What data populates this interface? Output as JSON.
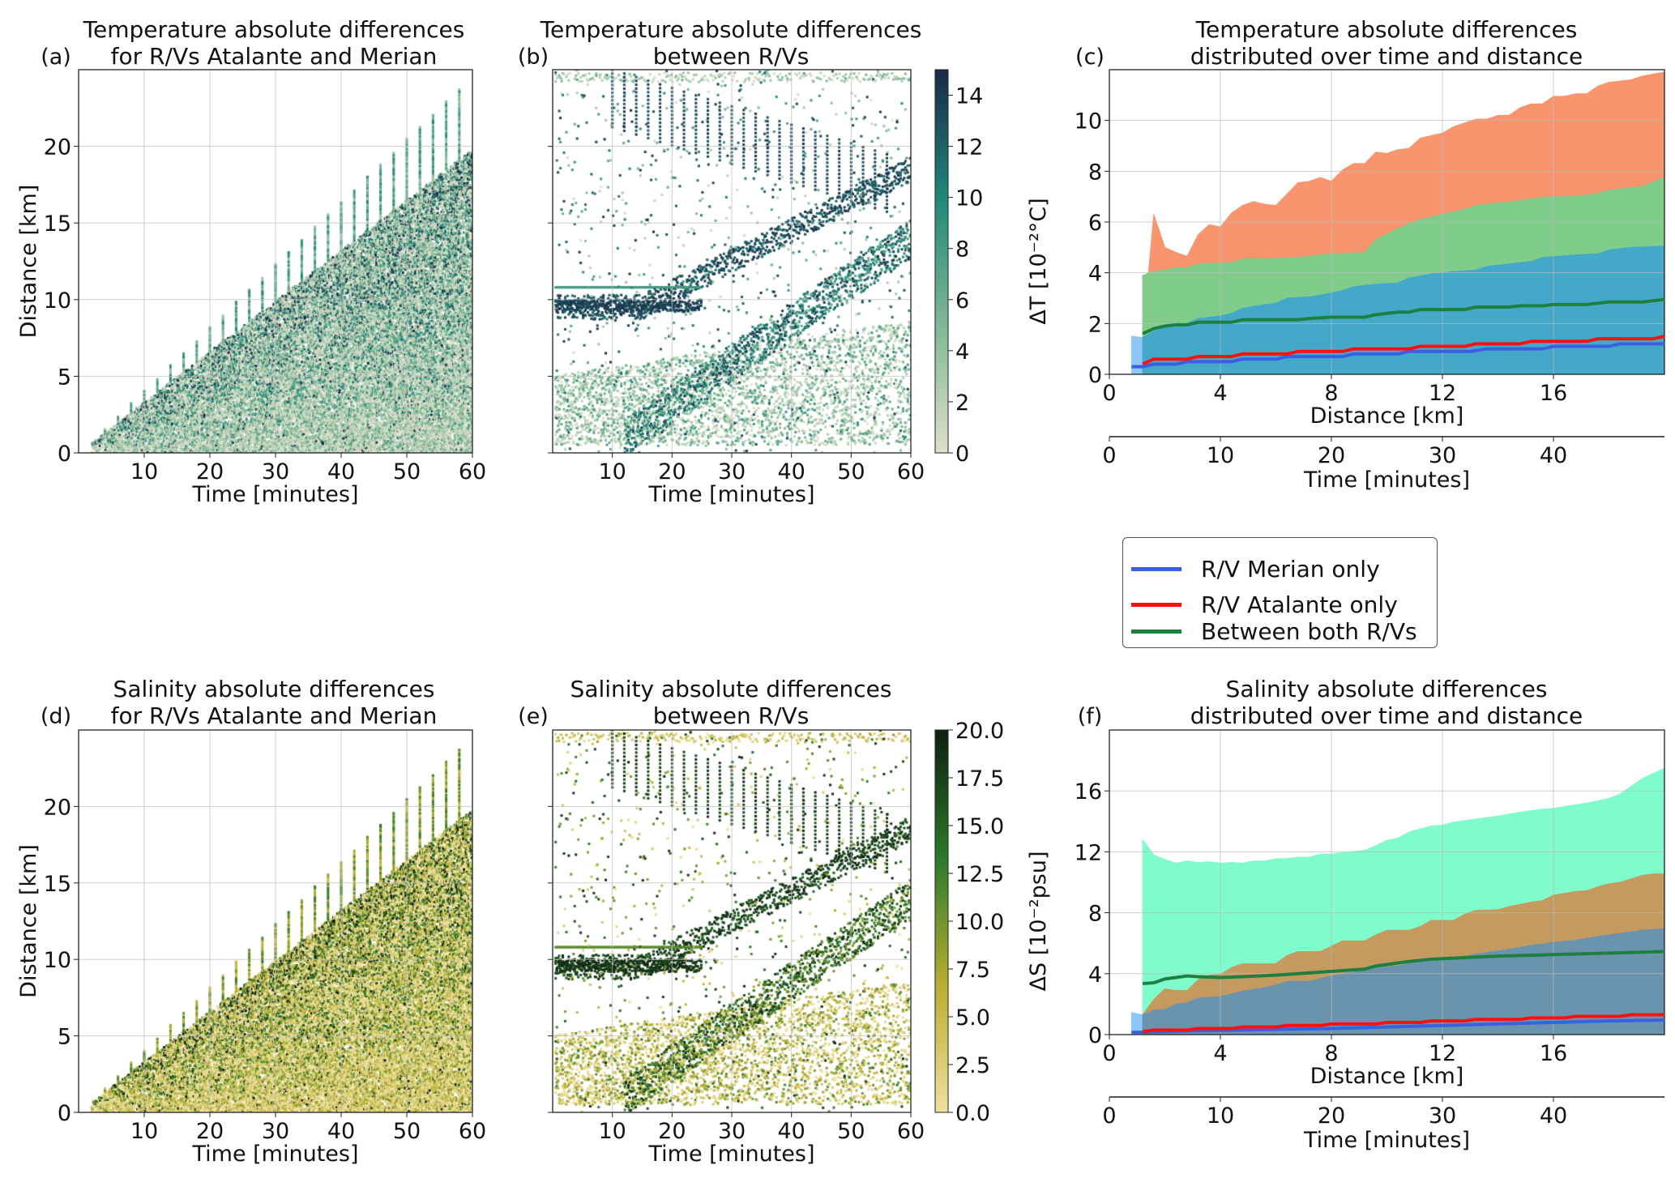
{
  "legend": {
    "entries": [
      {
        "label": "R/V Merian only",
        "color": "#3a5fe0"
      },
      {
        "label": "R/V Atalante only",
        "color": "#ff1010"
      },
      {
        "label": "Between both R/Vs",
        "color": "#1e8040"
      }
    ]
  },
  "chart_data": [
    {
      "panel_label": "(a)",
      "type": "scatter",
      "title": [
        "Temperature absolute differences",
        "for R/Vs Atalante and Merian"
      ],
      "xlabel": "Time [minutes]",
      "ylabel": "Distance [km]",
      "xlim": [
        0,
        60
      ],
      "ylim": [
        0,
        25
      ],
      "xticks": [
        10,
        20,
        30,
        40,
        50,
        60
      ],
      "yticks": [
        0,
        5,
        10,
        15,
        20
      ],
      "grid": true,
      "colormap": [
        "#dedfca",
        "#7fb896",
        "#1f8878",
        "#1a2a48"
      ],
      "value_range": [
        0,
        15
      ]
    },
    {
      "panel_label": "(b)",
      "type": "scatter",
      "title": [
        "Temperature absolute differences",
        "between R/Vs"
      ],
      "xlabel": "Time [minutes]",
      "xlim": [
        0,
        60
      ],
      "ylim": [
        0,
        25
      ],
      "xticks": [
        10,
        20,
        30,
        40,
        50,
        60
      ],
      "yticks": [
        0,
        5,
        10,
        15,
        20
      ],
      "grid": true,
      "colormap": [
        "#dedfca",
        "#7fb896",
        "#1f8878",
        "#1a2a48"
      ],
      "colorbar": {
        "label": "ΔT [10⁻²°C]",
        "range": [
          0,
          15
        ],
        "ticks": [
          "0",
          "2",
          "4",
          "6",
          "8",
          "10",
          "12",
          "14"
        ]
      }
    },
    {
      "panel_label": "(c)",
      "type": "area",
      "title": [
        "Temperature absolute differences",
        "distributed over time and distance"
      ],
      "xlabel": "Distance [km]",
      "xlim": [
        0,
        20
      ],
      "xticks": [
        0,
        4,
        8,
        12,
        16
      ],
      "secondary_x": {
        "xlabel": "Time [minutes]",
        "xlim": [
          0,
          50
        ],
        "xticks": [
          0,
          10,
          20,
          30,
          40
        ]
      },
      "ylim": [
        0,
        12
      ],
      "yticks": [
        0,
        2,
        4,
        6,
        8,
        10
      ],
      "grid": true,
      "bands": [
        {
          "color": "#f9956e",
          "x": [
            1.4,
            1.6,
            2,
            2.4,
            2.8,
            3.2,
            3.6,
            4,
            4.4,
            4.8,
            5.2,
            5.6,
            6,
            6.4,
            6.8,
            7.2,
            7.6,
            8,
            8.4,
            8.8,
            9.2,
            9.6,
            10,
            10.4,
            10.8,
            11.2,
            12,
            12.4,
            13.2,
            13.6,
            14,
            14.4,
            14.8,
            15.2,
            15.6,
            16,
            16.4,
            16.8,
            17.2,
            17.6,
            18,
            18.4,
            18.8,
            19.2,
            20
          ],
          "y": [
            3.9,
            6.3,
            5.0,
            4.8,
            4.65,
            5.5,
            5.9,
            5.8,
            6.35,
            6.65,
            6.8,
            6.7,
            6.65,
            7.1,
            7.55,
            7.6,
            7.75,
            7.6,
            8.05,
            8.3,
            8.3,
            8.75,
            8.7,
            8.85,
            8.9,
            9.3,
            9.5,
            9.75,
            10.05,
            10.05,
            10.2,
            10.2,
            10.5,
            10.65,
            10.65,
            10.95,
            10.95,
            11.05,
            11.05,
            11.35,
            11.5,
            11.55,
            11.6,
            11.75,
            11.9
          ]
        },
        {
          "color": "#80cc8a",
          "x": [
            1.2,
            1.6,
            2,
            2.4,
            2.8,
            3.2,
            4.4,
            4.8,
            5.6,
            6.8,
            8,
            9.2,
            9.6,
            10.4,
            11.2,
            12,
            12.8,
            13.2,
            14,
            14.8,
            15.6,
            16.8,
            17.6,
            18,
            19.2,
            20
          ],
          "y": [
            3.9,
            4.05,
            4.1,
            4.2,
            4.2,
            4.35,
            4.4,
            4.55,
            4.55,
            4.6,
            4.75,
            4.8,
            5.3,
            5.75,
            6.1,
            6.3,
            6.5,
            6.65,
            6.75,
            6.85,
            6.97,
            7.02,
            7.12,
            7.25,
            7.4,
            7.75
          ]
        },
        {
          "color": "#8ec8f6",
          "x": [
            0.8,
            1.2
          ],
          "y": [
            1.5,
            1.45
          ]
        },
        {
          "color": "#44a8c8",
          "x": [
            1.2,
            1.6,
            2,
            2.8,
            3.2,
            4,
            4.4,
            4.8,
            5.6,
            6,
            6.4,
            7.2,
            8,
            8.4,
            8.8,
            9.6,
            10.4,
            10.8,
            11.6,
            12.4,
            13.2,
            13.6,
            14.4,
            15.2,
            15.6,
            16.8,
            17.6,
            18,
            18.8,
            20
          ],
          "y": [
            1.45,
            1.7,
            1.85,
            2.0,
            2.2,
            2.3,
            2.4,
            2.6,
            2.75,
            2.8,
            3.0,
            3.05,
            3.2,
            3.3,
            3.45,
            3.55,
            3.6,
            3.8,
            3.95,
            4.05,
            4.1,
            4.25,
            4.35,
            4.45,
            4.6,
            4.7,
            4.75,
            4.9,
            5.0,
            5.05
          ]
        }
      ],
      "series": [
        {
          "name": "R/V Merian only",
          "color": "#3a5fe0",
          "x": [
            0.8,
            1.2,
            1.6,
            2.4,
            2.8,
            4.4,
            4.8,
            6,
            6.4,
            8.4,
            8.8,
            10.4,
            10.8,
            13,
            13.6,
            15.6,
            16,
            18,
            18.4,
            20
          ],
          "y": [
            0.3,
            0.3,
            0.4,
            0.4,
            0.5,
            0.5,
            0.6,
            0.6,
            0.7,
            0.7,
            0.8,
            0.8,
            0.9,
            0.9,
            1.0,
            1.0,
            1.1,
            1.1,
            1.2,
            1.2
          ]
        },
        {
          "name": "R/V Atalante only",
          "color": "#ff1010",
          "x": [
            1.2,
            1.6,
            2.8,
            3.2,
            4.4,
            4.8,
            6.4,
            6.8,
            8.4,
            8.8,
            10.8,
            11.2,
            12.8,
            13.2,
            14.8,
            15.2,
            17.2,
            17.6,
            19.6,
            20
          ],
          "y": [
            0.4,
            0.6,
            0.6,
            0.7,
            0.7,
            0.8,
            0.8,
            0.9,
            0.9,
            1.0,
            1.0,
            1.1,
            1.1,
            1.2,
            1.2,
            1.3,
            1.3,
            1.4,
            1.4,
            1.5
          ]
        },
        {
          "name": "Between both R/Vs",
          "color": "#1e8040",
          "x": [
            1.2,
            1.6,
            2,
            2.4,
            2.8,
            3.2,
            4.4,
            4.8,
            6.8,
            7.2,
            8,
            9.2,
            9.6,
            10.4,
            10.8,
            11.2,
            12.8,
            13.2,
            14.4,
            14.8,
            15.6,
            16,
            17.2,
            18,
            19.2,
            20
          ],
          "y": [
            1.6,
            1.8,
            1.9,
            1.95,
            1.95,
            2.05,
            2.05,
            2.15,
            2.15,
            2.2,
            2.25,
            2.25,
            2.35,
            2.45,
            2.45,
            2.55,
            2.55,
            2.65,
            2.65,
            2.7,
            2.7,
            2.75,
            2.75,
            2.85,
            2.85,
            2.95
          ]
        }
      ]
    },
    {
      "panel_label": "(d)",
      "type": "scatter",
      "title": [
        "Salinity absolute differences",
        "for R/Vs Atalante and Merian"
      ],
      "xlabel": "Time [minutes]",
      "ylabel": "Distance [km]",
      "xlim": [
        0,
        60
      ],
      "ylim": [
        0,
        25
      ],
      "xticks": [
        10,
        20,
        30,
        40,
        50,
        60
      ],
      "yticks": [
        0,
        5,
        10,
        15,
        20
      ],
      "grid": true,
      "colormap": [
        "#efe0a0",
        "#b8ae30",
        "#2a7a2a",
        "#0e2010"
      ],
      "value_range": [
        0,
        20
      ]
    },
    {
      "panel_label": "(e)",
      "type": "scatter",
      "title": [
        "Salinity absolute differences",
        "between R/Vs"
      ],
      "xlabel": "Time [minutes]",
      "xlim": [
        0,
        60
      ],
      "ylim": [
        0,
        25
      ],
      "xticks": [
        10,
        20,
        30,
        40,
        50,
        60
      ],
      "yticks": [
        0,
        5,
        10,
        15,
        20
      ],
      "grid": true,
      "colormap": [
        "#efe0a0",
        "#b8ae30",
        "#2a7a2a",
        "#0e2010"
      ],
      "colorbar": {
        "label": "ΔS [10⁻²psu]",
        "range": [
          0,
          20
        ],
        "ticks": [
          "0.0",
          "2.5",
          "5.0",
          "7.5",
          "10.0",
          "12.5",
          "15.0",
          "17.5",
          "20.0"
        ]
      }
    },
    {
      "panel_label": "(f)",
      "type": "area",
      "title": [
        "Salinity absolute differences",
        "distributed over time and distance"
      ],
      "xlabel": "Distance [km]",
      "xlim": [
        0,
        20
      ],
      "xticks": [
        0,
        4,
        8,
        12,
        16
      ],
      "secondary_x": {
        "xlabel": "Time [minutes]",
        "xlim": [
          0,
          50
        ],
        "xticks": [
          0,
          10,
          20,
          30,
          40
        ]
      },
      "ylim": [
        0,
        20
      ],
      "yticks": [
        0,
        4,
        8,
        12,
        16
      ],
      "grid": true,
      "bands": [
        {
          "color": "#80fccc",
          "x": [
            1.2,
            1.6,
            2,
            2.4,
            2.8,
            3.2,
            3.6,
            4,
            4.4,
            4.8,
            5.2,
            5.6,
            6,
            6.4,
            6.8,
            7.2,
            7.6,
            8,
            8.4,
            9.2,
            9.6,
            10,
            10.4,
            10.8,
            11.2,
            11.6,
            12,
            12.4,
            13.2,
            14,
            14.8,
            15.6,
            16,
            16.8,
            17.2,
            18,
            18.4,
            18.8,
            19.2,
            20
          ],
          "y": [
            12.8,
            11.8,
            11.5,
            11.25,
            11.4,
            11.3,
            11.35,
            11.25,
            11.3,
            11.25,
            11.4,
            11.4,
            11.55,
            11.55,
            11.65,
            11.65,
            11.85,
            11.85,
            11.95,
            12.1,
            12.4,
            12.75,
            12.9,
            13.3,
            13.5,
            13.7,
            13.75,
            13.95,
            14.15,
            14.35,
            14.6,
            14.8,
            14.85,
            15.1,
            15.2,
            15.5,
            15.8,
            16.3,
            16.8,
            17.5
          ]
        },
        {
          "color": "#c49a5e",
          "x": [
            1.2,
            1.6,
            2,
            2.4,
            2.8,
            3.2,
            3.6,
            4,
            4.4,
            4.8,
            6,
            6.4,
            6.8,
            7.6,
            8,
            8.4,
            9.2,
            9.6,
            10,
            10.8,
            11.2,
            11.6,
            12.4,
            12.8,
            13.2,
            14,
            14.4,
            15.2,
            15.6,
            16,
            16.8,
            17.2,
            17.6,
            18,
            18.4,
            19.2,
            19.6,
            20
          ],
          "y": [
            1.3,
            2.3,
            3.0,
            2.9,
            2.9,
            3.6,
            3.9,
            3.95,
            4.4,
            4.65,
            4.65,
            5.2,
            5.45,
            5.45,
            5.8,
            6.15,
            6.15,
            6.55,
            6.85,
            6.85,
            7.1,
            7.5,
            7.5,
            7.9,
            8.15,
            8.2,
            8.4,
            8.7,
            8.8,
            9.15,
            9.4,
            9.45,
            9.7,
            9.9,
            10.0,
            10.45,
            10.55,
            10.55
          ]
        },
        {
          "color": "#8ec8f6",
          "x": [
            0.8,
            1.2
          ],
          "y": [
            1.45,
            1.3
          ]
        },
        {
          "color": "#6a94ae",
          "x": [
            1.2,
            1.6,
            2,
            2.4,
            2.8,
            3.2,
            4,
            4.8,
            5.6,
            6,
            6.4,
            7.2,
            8,
            8.8,
            9.6,
            10.4,
            11.2,
            12,
            12.8,
            13.6,
            14.4,
            15.2,
            16,
            16.8,
            17.6,
            18.4,
            19.2,
            20
          ],
          "y": [
            1.3,
            1.6,
            1.65,
            2.0,
            2.1,
            2.4,
            2.5,
            2.85,
            3.1,
            3.25,
            3.5,
            3.5,
            3.85,
            4.1,
            4.4,
            4.5,
            4.85,
            4.95,
            5.15,
            5.4,
            5.6,
            5.85,
            6.05,
            6.2,
            6.45,
            6.65,
            6.85,
            6.95
          ]
        }
      ],
      "series": [
        {
          "name": "R/V Merian only",
          "color": "#3a5fe0",
          "x": [
            0.8,
            1.2,
            2,
            3.2,
            4.8,
            6.4,
            8,
            10,
            12,
            14,
            16,
            18,
            20
          ],
          "y": [
            0.15,
            0.15,
            0.2,
            0.25,
            0.3,
            0.35,
            0.4,
            0.5,
            0.6,
            0.7,
            0.8,
            0.9,
            0.95
          ]
        },
        {
          "name": "R/V Atalante only",
          "color": "#ff1010",
          "x": [
            1.2,
            1.6,
            2.8,
            3.2,
            4.4,
            4.8,
            6,
            6.4,
            7.6,
            8,
            9.6,
            10,
            11.2,
            11.6,
            12.8,
            13.2,
            14.8,
            15.2,
            16.4,
            16.8,
            18.4,
            18.8,
            20
          ],
          "y": [
            0.2,
            0.3,
            0.3,
            0.4,
            0.4,
            0.5,
            0.5,
            0.6,
            0.6,
            0.7,
            0.7,
            0.8,
            0.8,
            0.9,
            0.9,
            1.0,
            1.0,
            1.1,
            1.1,
            1.2,
            1.2,
            1.3,
            1.3
          ]
        },
        {
          "name": "Between both R/Vs",
          "color": "#1e8040",
          "x": [
            1.2,
            1.6,
            2,
            2.8,
            3.2,
            4,
            4.8,
            6,
            7.2,
            8,
            9.2,
            9.6,
            10,
            10.8,
            11.6,
            12.8,
            14,
            16,
            18,
            20
          ],
          "y": [
            3.35,
            3.4,
            3.65,
            3.85,
            3.8,
            3.75,
            3.8,
            3.9,
            4.05,
            4.15,
            4.3,
            4.5,
            4.6,
            4.8,
            4.95,
            5.05,
            5.15,
            5.25,
            5.35,
            5.45
          ]
        }
      ]
    }
  ]
}
